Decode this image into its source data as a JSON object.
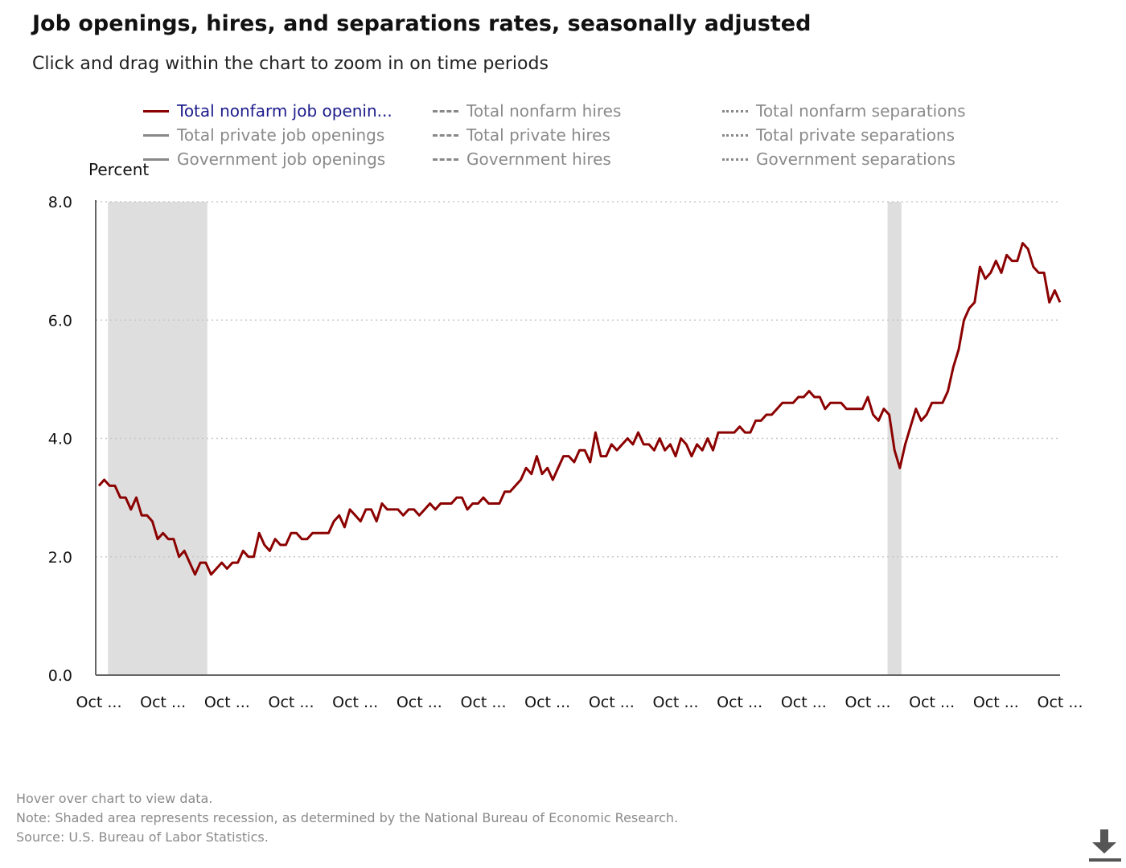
{
  "header": {
    "title": "Job openings, hires, and separations rates, seasonally adjusted",
    "subtitle": "Click and drag within the chart to zoom in on time periods"
  },
  "legend": [
    {
      "label": "Total nonfarm job openin...",
      "style": "solid",
      "active": true
    },
    {
      "label": "Total private job openings",
      "style": "solid",
      "active": false
    },
    {
      "label": "Government job openings",
      "style": "solid",
      "active": false
    },
    {
      "label": "Total nonfarm hires",
      "style": "dashed",
      "active": false
    },
    {
      "label": "Total private hires",
      "style": "dashed",
      "active": false
    },
    {
      "label": "Government hires",
      "style": "dashed",
      "active": false
    },
    {
      "label": "Total nonfarm separations",
      "style": "dotted",
      "active": false
    },
    {
      "label": "Total private separations",
      "style": "dotted",
      "active": false
    },
    {
      "label": "Government separations",
      "style": "dotted",
      "active": false
    }
  ],
  "footer": {
    "hover_note": "Hover over chart to view data.",
    "note": "Note: Shaded area represents recession, as determined by the National Bureau of Economic Research.",
    "source": "Source: U.S. Bureau of Labor Statistics."
  },
  "colors": {
    "series": "#8b0000",
    "recession": "#dedede",
    "grid": "#c8c8c8",
    "axis": "#666666"
  },
  "icons": {
    "download": "download-icon"
  },
  "chart_data": {
    "type": "line",
    "ylabel": "Percent",
    "ylim": [
      0,
      8
    ],
    "y_ticks": [
      "0.0",
      "2.0",
      "4.0",
      "6.0",
      "8.0"
    ],
    "x_tick_labels": [
      "Oct ...",
      "Oct ...",
      "Oct ...",
      "Oct ...",
      "Oct ...",
      "Oct ...",
      "Oct ...",
      "Oct ...",
      "Oct ...",
      "Oct ...",
      "Oct ...",
      "Oct ...",
      "Oct ...",
      "Oct ...",
      "Oct ...",
      "Oct ..."
    ],
    "grid": "horizontal dotted",
    "legend_position": "top",
    "recessions": [
      {
        "start_month_index": 2,
        "end_month_index": 20
      },
      {
        "start_month_index": 148,
        "end_month_index": 150
      }
    ],
    "series": [
      {
        "name": "Total nonfarm job openin...",
        "values": [
          3.2,
          3.3,
          3.2,
          3.2,
          3.0,
          3.0,
          2.8,
          3.0,
          2.7,
          2.7,
          2.6,
          2.3,
          2.4,
          2.3,
          2.3,
          2.0,
          2.1,
          1.9,
          1.7,
          1.9,
          1.9,
          1.7,
          1.8,
          1.9,
          1.8,
          1.9,
          1.9,
          2.1,
          2.0,
          2.0,
          2.4,
          2.2,
          2.1,
          2.3,
          2.2,
          2.2,
          2.4,
          2.4,
          2.3,
          2.3,
          2.4,
          2.4,
          2.4,
          2.4,
          2.6,
          2.7,
          2.5,
          2.8,
          2.7,
          2.6,
          2.8,
          2.8,
          2.6,
          2.9,
          2.8,
          2.8,
          2.8,
          2.7,
          2.8,
          2.8,
          2.7,
          2.8,
          2.9,
          2.8,
          2.9,
          2.9,
          2.9,
          3.0,
          3.0,
          2.8,
          2.9,
          2.9,
          3.0,
          2.9,
          2.9,
          2.9,
          3.1,
          3.1,
          3.2,
          3.3,
          3.5,
          3.4,
          3.7,
          3.4,
          3.5,
          3.3,
          3.5,
          3.7,
          3.7,
          3.6,
          3.8,
          3.8,
          3.6,
          4.1,
          3.7,
          3.7,
          3.9,
          3.8,
          3.9,
          4.0,
          3.9,
          4.1,
          3.9,
          3.9,
          3.8,
          4.0,
          3.8,
          3.9,
          3.7,
          4.0,
          3.9,
          3.7,
          3.9,
          3.8,
          4.0,
          3.8,
          4.1,
          4.1,
          4.1,
          4.1,
          4.2,
          4.1,
          4.1,
          4.3,
          4.3,
          4.4,
          4.4,
          4.5,
          4.6,
          4.6,
          4.6,
          4.7,
          4.7,
          4.8,
          4.7,
          4.7,
          4.5,
          4.6,
          4.6,
          4.6,
          4.5,
          4.5,
          4.5,
          4.5,
          4.7,
          4.4,
          4.3,
          4.5,
          4.4,
          3.8,
          3.5,
          3.9,
          4.2,
          4.5,
          4.3,
          4.4,
          4.6,
          4.6,
          4.6,
          4.8,
          5.2,
          5.5,
          6.0,
          6.2,
          6.3,
          6.9,
          6.7,
          6.8,
          7.0,
          6.8,
          7.1,
          7.0,
          7.0,
          7.3,
          7.2,
          6.9,
          6.8,
          6.8,
          6.3,
          6.5,
          6.3
        ]
      }
    ]
  }
}
